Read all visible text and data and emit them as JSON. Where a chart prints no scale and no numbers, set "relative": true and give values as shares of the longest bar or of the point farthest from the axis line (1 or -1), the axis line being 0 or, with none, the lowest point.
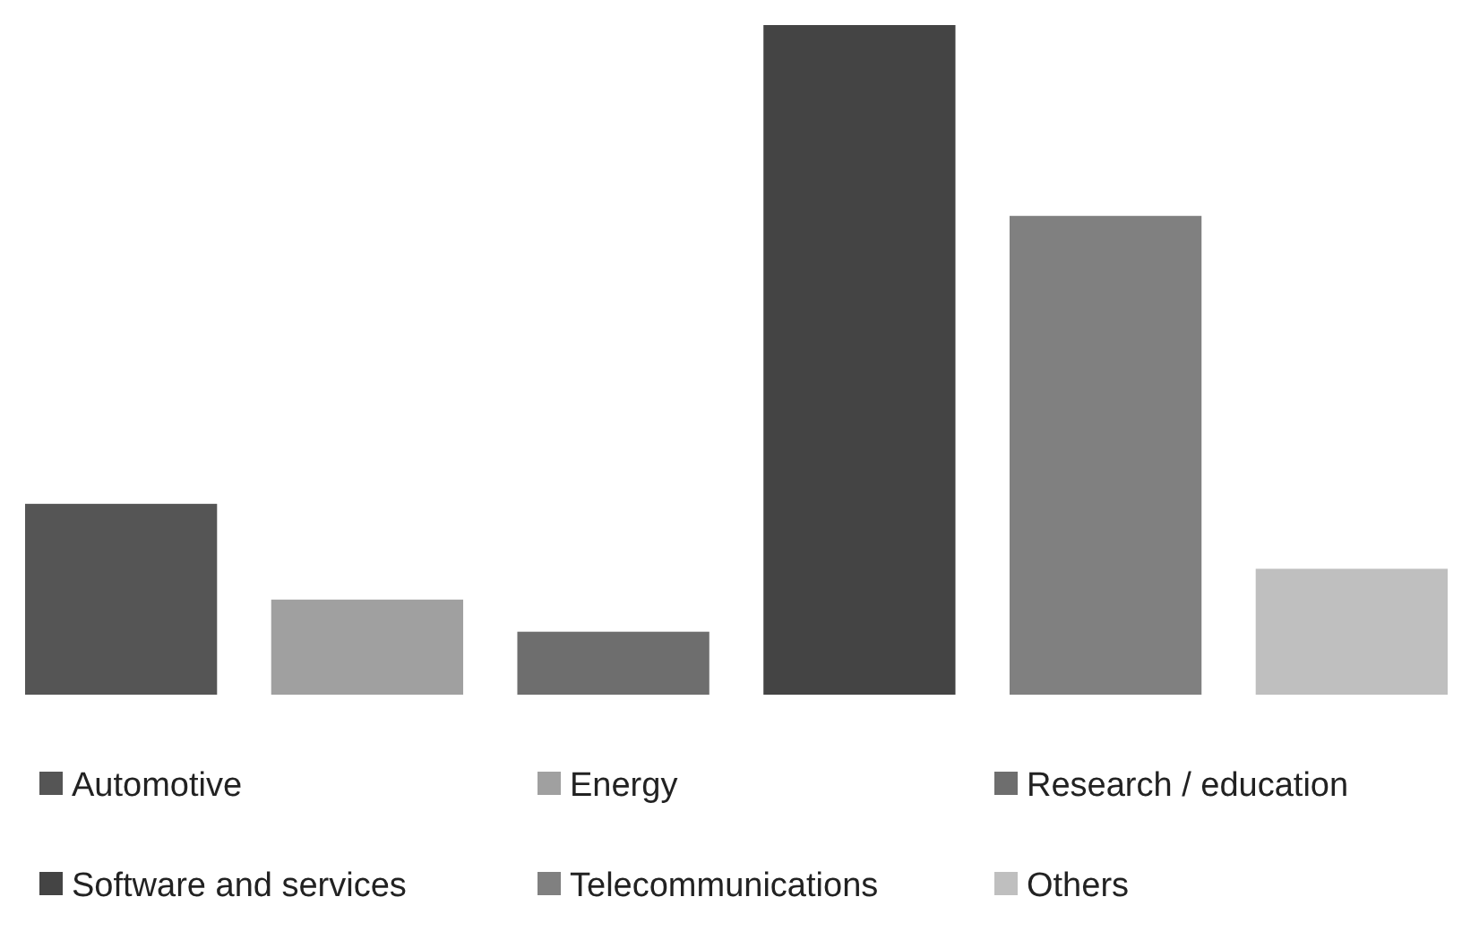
{
  "chart_data": {
    "type": "bar",
    "relative": true,
    "stacked": true,
    "legend": "bottom",
    "categories": [
      null,
      null,
      null,
      null,
      null,
      null
    ],
    "series": [
      {
        "name": "Automotive",
        "color": "#555555",
        "values": [
          0.285,
          null,
          null,
          null,
          null,
          null
        ]
      },
      {
        "name": "Energy",
        "color": "#a0a0a0",
        "values": [
          null,
          0.142,
          null,
          null,
          null,
          null
        ]
      },
      {
        "name": "Research / education",
        "color": "#6e6e6e",
        "values": [
          null,
          null,
          0.094,
          null,
          null,
          null
        ]
      },
      {
        "name": "Software and services",
        "color": "#444444",
        "values": [
          null,
          null,
          null,
          1,
          null,
          null
        ]
      },
      {
        "name": "Telecommunications",
        "color": "#808080",
        "values": [
          null,
          null,
          null,
          null,
          0.715,
          null
        ]
      },
      {
        "name": "Others",
        "color": "#bfbfbf",
        "values": [
          null,
          null,
          null,
          null,
          null,
          0.188
        ]
      }
    ]
  }
}
